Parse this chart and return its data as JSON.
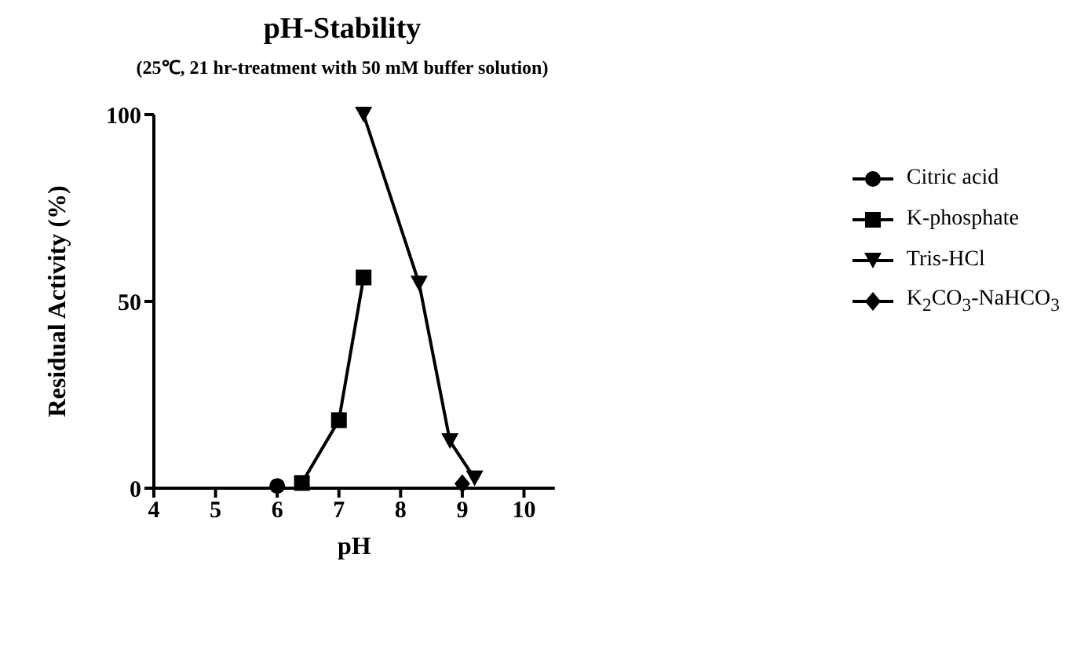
{
  "chart_data": {
    "type": "line",
    "title": "pH-Stability",
    "subtitle": "(25℃, 21 hr-treatment with 50 mM buffer solution)",
    "xlabel": "pH",
    "ylabel": "Residual Activity (%)",
    "xlim": [
      4,
      10.5
    ],
    "xticks": [
      4,
      5,
      6,
      7,
      8,
      9,
      10
    ],
    "ylim": [
      0,
      100
    ],
    "yticks": [
      0,
      50,
      100
    ],
    "grid": false,
    "legend": "right",
    "line_style": "solid",
    "series": [
      {
        "name": "Citric acid",
        "color": "#000000",
        "marker": "circle",
        "x": [
          6.0
        ],
        "values": [
          0.6
        ]
      },
      {
        "name": "K-phosphate",
        "color": "#000000",
        "marker": "square",
        "x": [
          6.4,
          7.0,
          7.4
        ],
        "values": [
          1.4,
          18.2,
          56.4
        ]
      },
      {
        "name": "Tris-HCl",
        "color": "#000000",
        "marker": "triangle-down",
        "x": [
          7.4,
          8.3,
          8.8,
          9.2
        ],
        "values": [
          100,
          54.8,
          12.6,
          2.6
        ]
      },
      {
        "name": "K$_{2}$CO$_{3}$-NaHCO$_{3}$",
        "color": "#000000",
        "marker": "diamond",
        "x": [
          9.0
        ],
        "values": [
          1.2
        ]
      }
    ]
  }
}
